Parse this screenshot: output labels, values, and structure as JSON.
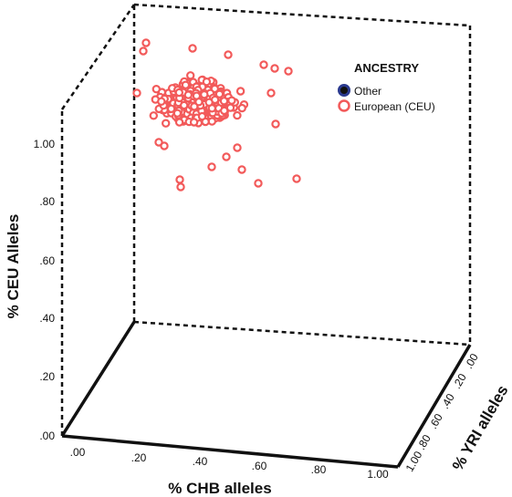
{
  "chart_data": {
    "type": "scatter",
    "projection": "3d",
    "xlabel": "% CHB alleles",
    "ylabel": "% CEU Alleles",
    "zlabel": "% YRI alleles",
    "xticks": [
      ".00",
      ".20",
      ".40",
      ".60",
      ".80",
      "1.00"
    ],
    "yticks": [
      ".00",
      ".20",
      ".40",
      ".60",
      ".80",
      "1.00"
    ],
    "zticks": [
      ".00",
      ".20",
      ".40",
      ".60",
      ".80",
      "1.00"
    ],
    "xlim": [
      0,
      1
    ],
    "ylim": [
      0,
      1
    ],
    "zlim": [
      0,
      1
    ],
    "legend": {
      "title": "ANCESTRY",
      "placement": "top-right",
      "entries": [
        {
          "label": "Other",
          "color": "#2b3a8f",
          "marker": "filled-circle"
        },
        {
          "label": "European (CEU)",
          "color": "#f25a5a",
          "marker": "open-circle"
        }
      ]
    },
    "series": [
      {
        "name": "European (CEU)",
        "color": "#f25a5a",
        "note": "dense cluster of several hundred samples; CEU ≈ 1.00, CHB ≈ 0.05–0.45"
      }
    ]
  }
}
